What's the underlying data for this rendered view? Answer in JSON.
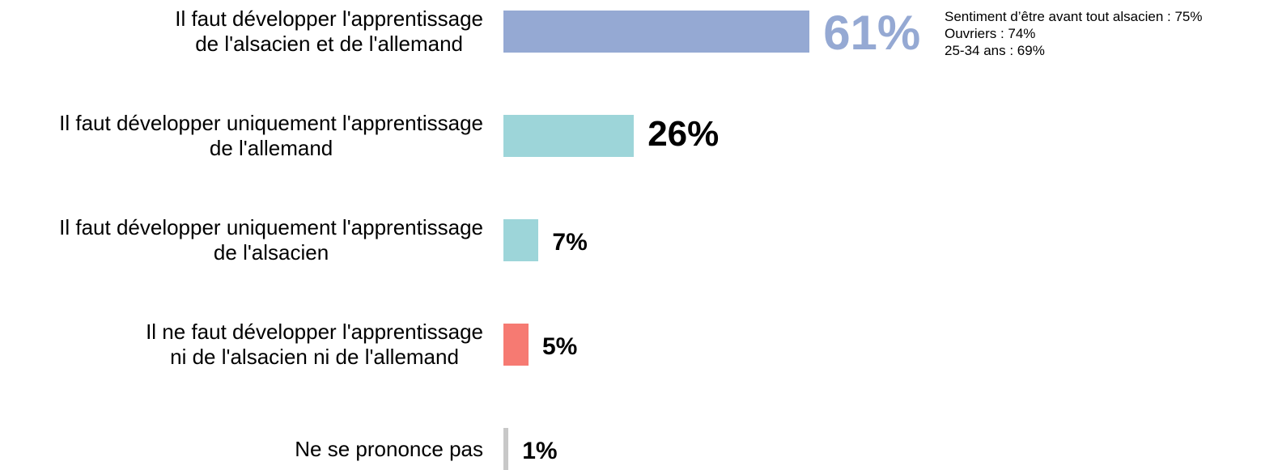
{
  "chart_data": {
    "type": "bar",
    "orientation": "horizontal",
    "categories": [
      [
        "Il faut développer l'apprentissage",
        "de l'alsacien et de l'allemand"
      ],
      [
        "Il faut développer uniquement l'apprentissage",
        "de l'allemand"
      ],
      [
        "Il faut développer uniquement l'apprentissage",
        "de l'alsacien"
      ],
      [
        "Il ne faut développer l'apprentissage",
        "ni de l'alsacien ni de l'allemand"
      ],
      [
        "Ne se prononce pas"
      ]
    ],
    "values": [
      61,
      26,
      7,
      5,
      1
    ],
    "value_labels": [
      "61%",
      "26%",
      "7%",
      "5%",
      "1%"
    ],
    "colors": [
      "#95a9d3",
      "#9dd5d9",
      "#9dd5d9",
      "#f67a72",
      "#c8c8c8"
    ],
    "annotation": [
      "Sentiment d’être avant tout alsacien : 75%",
      "Ouvriers : 74%",
      "25-34 ans : 69%"
    ],
    "xlim": [
      0,
      100
    ],
    "grid": false,
    "legend": "none"
  }
}
